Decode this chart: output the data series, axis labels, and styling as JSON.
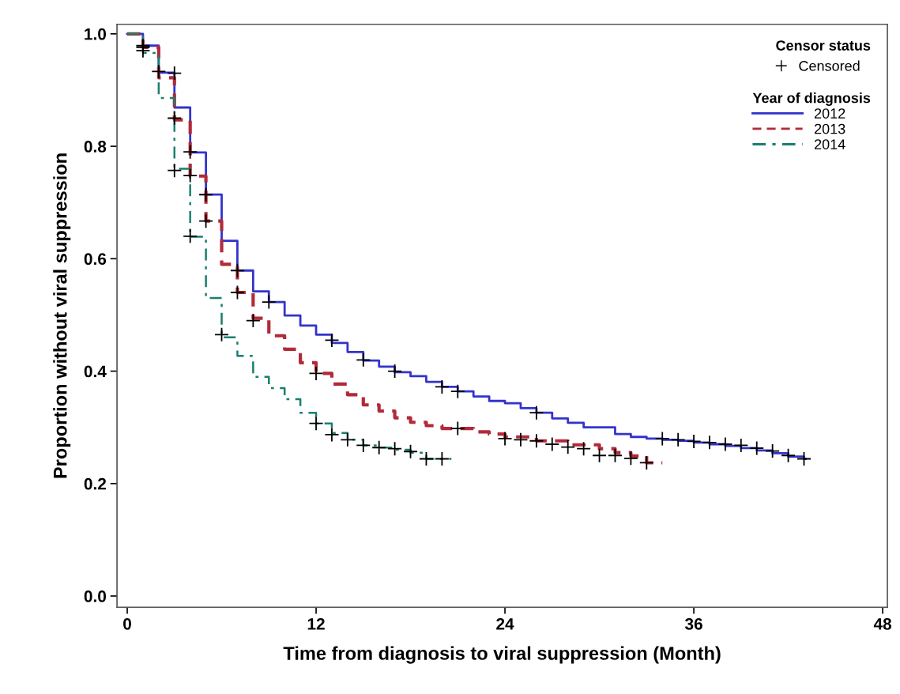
{
  "chart_data": {
    "type": "step",
    "xlabel": "Time from diagnosis to viral suppression (Month)",
    "ylabel": "Proportion without viral suppression",
    "legend_title": [
      "Censor status",
      "Year of diagnosis"
    ],
    "legend": "top right",
    "grid": false,
    "xlim": [
      -0.65,
      48.3
    ],
    "xticks": [
      0,
      12,
      24,
      36,
      48
    ],
    "ylim": [
      -0.02,
      1.017
    ],
    "yticks": [
      {
        "value": 0,
        "label": "0.0"
      },
      {
        "value": 0.2,
        "label": "0.2"
      },
      {
        "value": 0.4,
        "label": "0.4"
      },
      {
        "value": 0.6,
        "label": "0.6"
      },
      {
        "value": 0.8,
        "label": "0.8"
      },
      {
        "value": 1,
        "label": "1.0"
      }
    ],
    "series": [
      {
        "name": "Censored",
        "type": "scatter",
        "marker": "cross",
        "color": "#000000",
        "x": [
          1,
          3,
          4,
          5,
          7,
          9,
          13,
          15,
          17,
          20,
          21,
          26,
          34,
          35,
          36,
          37,
          38,
          39,
          40,
          41,
          42,
          43,
          1,
          5,
          7,
          8,
          12,
          21,
          24,
          25,
          26,
          27,
          28,
          29,
          30,
          31,
          32,
          33,
          1,
          2,
          3,
          3,
          4,
          4,
          6,
          12,
          13,
          14,
          15,
          16,
          17,
          18,
          19,
          20
        ],
        "values": [
          0.979,
          0.93,
          0.79,
          0.714,
          0.579,
          0.523,
          0.455,
          0.42,
          0.4,
          0.372,
          0.364,
          0.326,
          0.28,
          0.278,
          0.275,
          0.273,
          0.27,
          0.268,
          0.263,
          0.258,
          0.25,
          0.244,
          0.976,
          0.667,
          0.54,
          0.49,
          0.396,
          0.298,
          0.28,
          0.278,
          0.276,
          0.27,
          0.265,
          0.262,
          0.25,
          0.25,
          0.245,
          0.237,
          0.97,
          0.933,
          0.85,
          0.757,
          0.748,
          0.64,
          0.465,
          0.307,
          0.287,
          0.278,
          0.268,
          0.264,
          0.262,
          0.257,
          0.244,
          0.244
        ]
      },
      {
        "name": "2012",
        "color": "#3333cc",
        "line_style": "solid",
        "x": [
          0,
          1,
          2,
          3,
          4,
          5,
          6,
          7,
          8,
          9,
          10,
          11,
          12,
          13,
          14,
          15,
          16,
          17,
          18,
          19,
          20,
          21,
          22,
          23,
          24,
          25,
          26,
          27,
          28,
          29,
          31,
          32,
          33,
          34,
          35,
          36,
          37,
          38,
          39,
          40,
          41,
          42,
          43,
          43.1
        ],
        "values": [
          1.0,
          0.979,
          0.931,
          0.869,
          0.789,
          0.714,
          0.632,
          0.579,
          0.542,
          0.523,
          0.499,
          0.481,
          0.465,
          0.45,
          0.434,
          0.419,
          0.408,
          0.398,
          0.391,
          0.381,
          0.372,
          0.364,
          0.355,
          0.347,
          0.343,
          0.334,
          0.326,
          0.316,
          0.308,
          0.3,
          0.288,
          0.283,
          0.28,
          0.278,
          0.276,
          0.273,
          0.27,
          0.267,
          0.263,
          0.259,
          0.254,
          0.248,
          0.244,
          0.244
        ]
      },
      {
        "name": "2013",
        "color": "#b22a3a",
        "line_style": "dashed",
        "x": [
          0,
          1,
          2,
          3,
          4,
          5,
          6,
          7,
          8,
          9,
          10,
          11,
          12,
          13,
          14,
          15,
          16,
          17,
          18,
          19,
          20,
          22,
          23,
          24,
          26,
          28,
          30,
          31,
          32,
          33,
          34
        ],
        "values": [
          1.0,
          0.976,
          0.922,
          0.847,
          0.747,
          0.667,
          0.59,
          0.54,
          0.494,
          0.463,
          0.439,
          0.415,
          0.396,
          0.377,
          0.358,
          0.34,
          0.329,
          0.317,
          0.309,
          0.303,
          0.298,
          0.292,
          0.288,
          0.283,
          0.276,
          0.269,
          0.262,
          0.255,
          0.249,
          0.237,
          0.237
        ]
      },
      {
        "name": "2014",
        "color": "#1a7f6e",
        "line_style": "dashdot",
        "x": [
          0,
          1,
          2,
          3,
          4,
          5,
          6,
          7,
          8,
          9,
          10,
          11,
          12,
          13,
          14,
          15,
          16,
          17,
          18,
          19,
          20,
          20.6
        ],
        "values": [
          1.0,
          0.966,
          0.886,
          0.76,
          0.639,
          0.53,
          0.46,
          0.427,
          0.39,
          0.37,
          0.35,
          0.326,
          0.307,
          0.29,
          0.278,
          0.268,
          0.264,
          0.26,
          0.255,
          0.244,
          0.244,
          0.244
        ]
      }
    ]
  }
}
